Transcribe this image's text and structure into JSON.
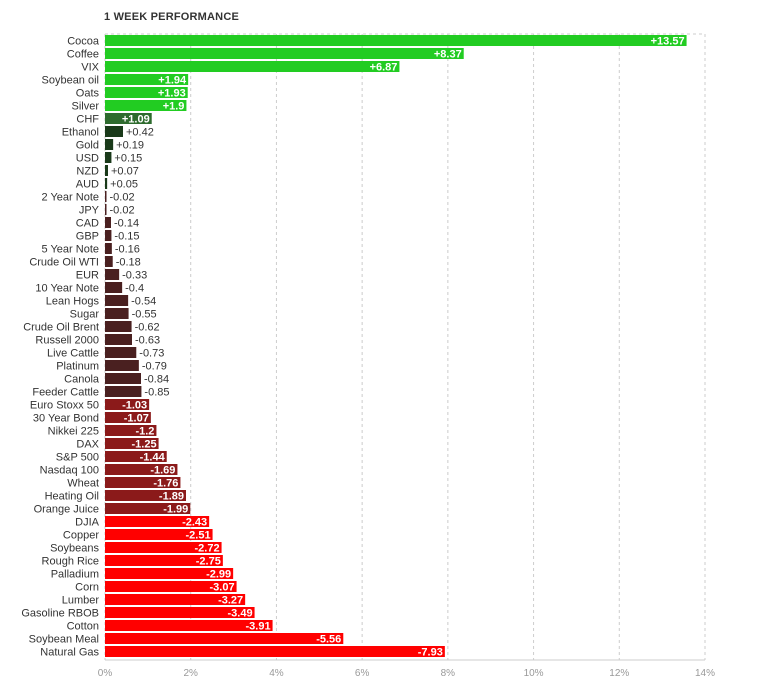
{
  "chart_data": {
    "type": "bar",
    "orientation": "horizontal",
    "title": "1 WEEK PERFORMANCE",
    "xlim": [
      0,
      14
    ],
    "x_ticks": [
      "0%",
      "2%",
      "4%",
      "6%",
      "8%",
      "10%",
      "12%",
      "14%"
    ],
    "grid": true,
    "categories": [
      "Cocoa",
      "Coffee",
      "VIX",
      "Soybean oil",
      "Oats",
      "Silver",
      "CHF",
      "Ethanol",
      "Gold",
      "USD",
      "NZD",
      "AUD",
      "2 Year Note",
      "JPY",
      "CAD",
      "GBP",
      "5 Year Note",
      "Crude Oil WTI",
      "EUR",
      "10 Year Note",
      "Lean Hogs",
      "Sugar",
      "Crude Oil Brent",
      "Russell 2000",
      "Live Cattle",
      "Platinum",
      "Canola",
      "Feeder Cattle",
      "Euro Stoxx 50",
      "30 Year Bond",
      "Nikkei 225",
      "DAX",
      "S&P 500",
      "Nasdaq 100",
      "Wheat",
      "Heating Oil",
      "Orange Juice",
      "DJIA",
      "Copper",
      "Soybeans",
      "Rough Rice",
      "Palladium",
      "Corn",
      "Lumber",
      "Gasoline RBOB",
      "Cotton",
      "Soybean Meal",
      "Natural Gas"
    ],
    "values": [
      13.57,
      8.37,
      6.87,
      1.94,
      1.93,
      1.9,
      1.09,
      0.42,
      0.19,
      0.15,
      0.07,
      0.05,
      -0.02,
      -0.02,
      -0.14,
      -0.15,
      -0.16,
      -0.18,
      -0.33,
      -0.4,
      -0.54,
      -0.55,
      -0.62,
      -0.63,
      -0.73,
      -0.79,
      -0.84,
      -0.85,
      -1.03,
      -1.07,
      -1.2,
      -1.25,
      -1.44,
      -1.69,
      -1.76,
      -1.89,
      -1.99,
      -2.43,
      -2.51,
      -2.72,
      -2.75,
      -2.99,
      -3.07,
      -3.27,
      -3.49,
      -3.91,
      -5.56,
      -7.93
    ],
    "value_labels": [
      "+13.57",
      "+8.37",
      "+6.87",
      "+1.94",
      "+1.93",
      "+1.9",
      "+1.09",
      "+0.42",
      "+0.19",
      "+0.15",
      "+0.07",
      "+0.05",
      "-0.02",
      "-0.02",
      "-0.14",
      "-0.15",
      "-0.16",
      "-0.18",
      "-0.33",
      "-0.4",
      "-0.54",
      "-0.55",
      "-0.62",
      "-0.63",
      "-0.73",
      "-0.79",
      "-0.84",
      "-0.85",
      "-1.03",
      "-1.07",
      "-1.2",
      "-1.25",
      "-1.44",
      "-1.69",
      "-1.76",
      "-1.89",
      "-1.99",
      "-2.43",
      "-2.51",
      "-2.72",
      "-2.75",
      "-2.99",
      "-3.07",
      "-3.27",
      "-3.49",
      "-3.91",
      "-5.56",
      "-7.93"
    ],
    "colors": {
      "positive_bright": "#22cc22",
      "positive_dark": "#2e6b2e",
      "negative_dark": "#4a2020",
      "negative_mid": "#8b1a1a",
      "negative_bright": "#ff0000",
      "grid": "#cccccc"
    }
  }
}
